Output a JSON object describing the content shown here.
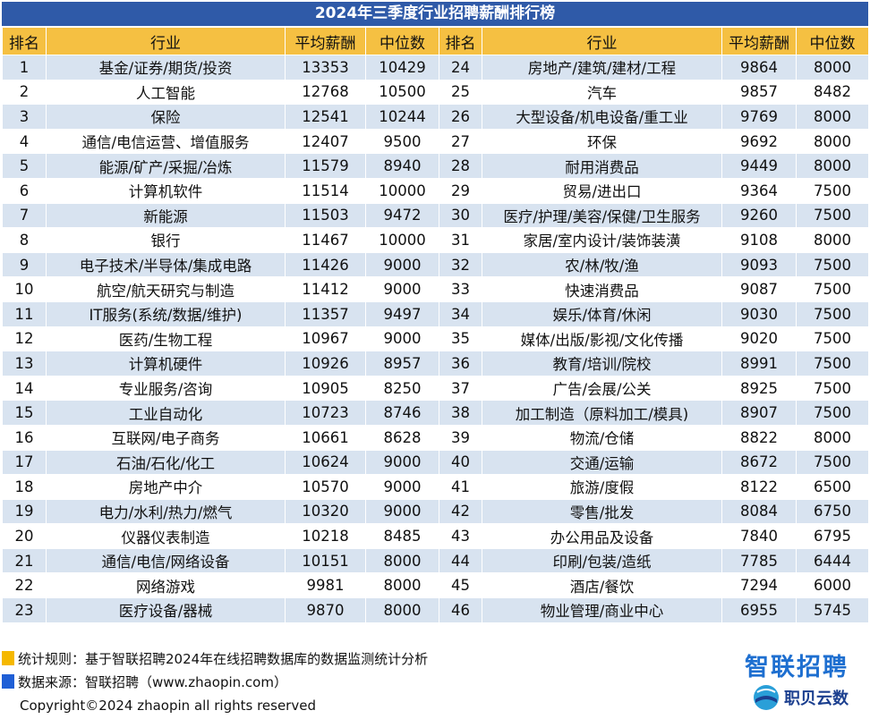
{
  "title": "2024年三季度行业招聘薪酬排行榜",
  "headers": [
    "排名",
    "行业",
    "平均薪酬",
    "中位数",
    "排名",
    "行业",
    "平均薪酬",
    "中位数"
  ],
  "rows": [
    [
      "1",
      "基金/证券/期货/投资",
      "13353",
      "10429",
      "24",
      "房地产/建筑/建材/工程",
      "9864",
      "8000"
    ],
    [
      "2",
      "人工智能",
      "12768",
      "10500",
      "25",
      "汽车",
      "9857",
      "8482"
    ],
    [
      "3",
      "保险",
      "12541",
      "10244",
      "26",
      "大型设备/机电设备/重工业",
      "9769",
      "8000"
    ],
    [
      "4",
      "通信/电信运营、增值服务",
      "12407",
      "9500",
      "27",
      "环保",
      "9692",
      "8000"
    ],
    [
      "5",
      "能源/矿产/采掘/冶炼",
      "11579",
      "8940",
      "28",
      "耐用消费品",
      "9449",
      "8000"
    ],
    [
      "6",
      "计算机软件",
      "11514",
      "10000",
      "29",
      "贸易/进出口",
      "9364",
      "7500"
    ],
    [
      "7",
      "新能源",
      "11503",
      "9472",
      "30",
      "医疗/护理/美容/保健/卫生服务",
      "9260",
      "7500"
    ],
    [
      "8",
      "银行",
      "11467",
      "10000",
      "31",
      "家居/室内设计/装饰装潢",
      "9108",
      "8000"
    ],
    [
      "9",
      "电子技术/半导体/集成电路",
      "11426",
      "9000",
      "32",
      "农/林/牧/渔",
      "9093",
      "7500"
    ],
    [
      "10",
      "航空/航天研究与制造",
      "11412",
      "9000",
      "33",
      "快速消费品",
      "9087",
      "7500"
    ],
    [
      "11",
      "IT服务(系统/数据/维护)",
      "11357",
      "9497",
      "34",
      "娱乐/体育/休闲",
      "9030",
      "7500"
    ],
    [
      "12",
      "医药/生物工程",
      "10967",
      "9000",
      "35",
      "媒体/出版/影视/文化传播",
      "9020",
      "7500"
    ],
    [
      "13",
      "计算机硬件",
      "10926",
      "8957",
      "36",
      "教育/培训/院校",
      "8991",
      "7500"
    ],
    [
      "14",
      "专业服务/咨询",
      "10905",
      "8250",
      "37",
      "广告/会展/公关",
      "8925",
      "7500"
    ],
    [
      "15",
      "工业自动化",
      "10723",
      "8746",
      "38",
      "加工制造（原料加工/模具)",
      "8907",
      "7500"
    ],
    [
      "16",
      "互联网/电子商务",
      "10661",
      "8628",
      "39",
      "物流/仓储",
      "8822",
      "8000"
    ],
    [
      "17",
      "石油/石化/化工",
      "10624",
      "9000",
      "40",
      "交通/运输",
      "8672",
      "7500"
    ],
    [
      "18",
      "房地产中介",
      "10570",
      "9000",
      "41",
      "旅游/度假",
      "8122",
      "6500"
    ],
    [
      "19",
      "电力/水利/热力/燃气",
      "10320",
      "9000",
      "42",
      "零售/批发",
      "8084",
      "6750"
    ],
    [
      "20",
      "仪器仪表制造",
      "10218",
      "8485",
      "43",
      "办公用品及设备",
      "7840",
      "6795"
    ],
    [
      "21",
      "通信/电信/网络设备",
      "10151",
      "8000",
      "44",
      "印刷/包装/造纸",
      "7785",
      "6444"
    ],
    [
      "22",
      "网络游戏",
      "9981",
      "8000",
      "45",
      "酒店/餐饮",
      "7294",
      "6000"
    ],
    [
      "23",
      "医疗设备/器械",
      "9870",
      "8000",
      "46",
      "物业管理/商业中心",
      "6955",
      "5745"
    ]
  ],
  "footer": {
    "rule": "统计规则：基于智联招聘2024年在线招聘数据库的数据监测统计分析",
    "source": "数据来源：智联招聘（www.zhaopin.com）",
    "copyright": "Copyright©2024 zhaopin all rights reserved",
    "logo": "智联招聘",
    "badge": "职贝云数"
  },
  "colors": {
    "title_bg": "#2f5aa8",
    "header_bg": "#f5c042",
    "row_alt_bg": "#d8e3f0",
    "rule_mark": "#f5b800",
    "source_mark": "#1f5fd6",
    "logo": "#1e6fd0"
  },
  "icons": [
    "globe-icon"
  ]
}
